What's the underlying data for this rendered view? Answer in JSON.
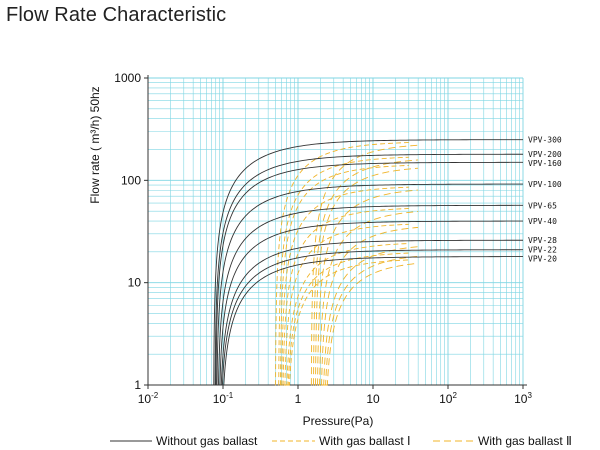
{
  "page": {
    "title": "Flow Rate Characteristic"
  },
  "colors": {
    "grid": "#7fd6e3",
    "axis": "#333333",
    "without_gas_ballast": "#333333",
    "with_gas_ballast": "#f0b429"
  },
  "chart_data": {
    "type": "line",
    "title": "Flow Rate Characteristic",
    "xlabel": "Pressure(Pa)",
    "ylabel": "Flow rate ( m³/h) 50hz",
    "xscale": "log",
    "yscale": "log",
    "xlim": [
      0.01,
      1000
    ],
    "ylim": [
      1,
      1000
    ],
    "grid": true,
    "x_ticks": [
      {
        "base": "10",
        "exp": "-2"
      },
      {
        "base": "10",
        "exp": "-1"
      },
      {
        "base": "1",
        "exp": ""
      },
      {
        "base": "10",
        "exp": ""
      },
      {
        "base": "10",
        "exp": "2"
      },
      {
        "base": "10",
        "exp": "3"
      }
    ],
    "y_ticks": [
      "1",
      "10",
      "100",
      "1000"
    ],
    "legend": {
      "placement": "bottom",
      "entries": [
        {
          "label": "Without gas ballast",
          "style": "solid"
        },
        {
          "label": "With gas ballast Ⅰ",
          "style": "dashed"
        },
        {
          "label": "With gas ballast Ⅱ",
          "style": "dashed"
        }
      ]
    },
    "series": [
      {
        "name": "VPV-300",
        "capacity": 250,
        "start_no_ballast": 0.075,
        "start_ballast_1": 0.5,
        "start_ballast_2": 1.5
      },
      {
        "name": "VPV-200",
        "capacity": 180,
        "start_no_ballast": 0.078,
        "start_ballast_1": 0.55,
        "start_ballast_2": 1.6
      },
      {
        "name": "VPV-160",
        "capacity": 150,
        "start_no_ballast": 0.08,
        "start_ballast_1": 0.58,
        "start_ballast_2": 1.7
      },
      {
        "name": "VPV-100",
        "capacity": 92,
        "start_no_ballast": 0.082,
        "start_ballast_1": 0.6,
        "start_ballast_2": 1.8
      },
      {
        "name": "VPV-65",
        "capacity": 57,
        "start_no_ballast": 0.085,
        "start_ballast_1": 0.62,
        "start_ballast_2": 1.9
      },
      {
        "name": "VPV-40",
        "capacity": 40,
        "start_no_ballast": 0.088,
        "start_ballast_1": 0.65,
        "start_ballast_2": 2.0
      },
      {
        "name": "VPV-28",
        "capacity": 26,
        "start_no_ballast": 0.09,
        "start_ballast_1": 0.68,
        "start_ballast_2": 2.1
      },
      {
        "name": "VPV-22",
        "capacity": 21,
        "start_no_ballast": 0.092,
        "start_ballast_1": 0.7,
        "start_ballast_2": 2.2
      },
      {
        "name": "VPV-20",
        "capacity": 18,
        "start_no_ballast": 0.095,
        "start_ballast_1": 0.72,
        "start_ballast_2": 2.3
      }
    ]
  }
}
